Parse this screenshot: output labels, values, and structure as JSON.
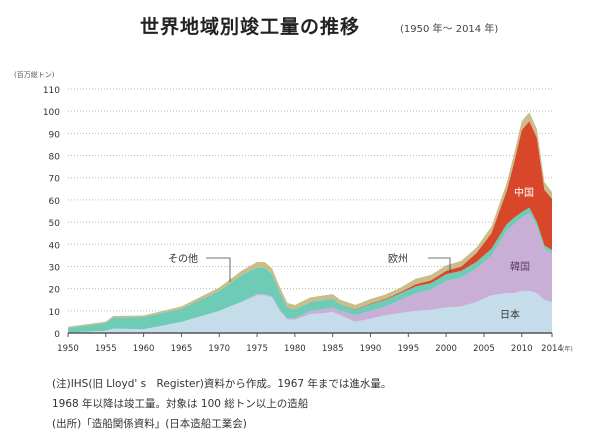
{
  "chart_data": {
    "type": "area",
    "stacked": true,
    "title": "世界地域別竣工量の推移",
    "subtitle": "(1950 年～ 2014 年)",
    "ylabel": "(百万総トン)",
    "xlabel": "(年)",
    "ylim": [
      0,
      110
    ],
    "xlim": [
      1950,
      2014
    ],
    "grid": true,
    "yticks": [
      0,
      10,
      20,
      30,
      40,
      50,
      60,
      70,
      80,
      90,
      100,
      110
    ],
    "xticks": [
      "1950",
      "1955",
      "1960",
      "1965",
      "1970",
      "1975",
      "1980",
      "1985",
      "1990",
      "1995",
      "2000",
      "2005",
      "2010",
      "2014"
    ],
    "x": [
      1950,
      1955,
      1956,
      1960,
      1965,
      1970,
      1973,
      1975,
      1976,
      1977,
      1978,
      1979,
      1980,
      1982,
      1984,
      1985,
      1986,
      1988,
      1990,
      1992,
      1994,
      1996,
      1998,
      2000,
      2002,
      2004,
      2006,
      2008,
      2009,
      2010,
      2011,
      2012,
      2013,
      2014
    ],
    "series": [
      {
        "name": "日本",
        "color": "#c5dcea",
        "values": [
          0.3,
          1,
          2,
          1.7,
          5,
          10,
          14,
          17,
          17,
          16,
          10,
          6,
          6,
          8.5,
          9,
          9.5,
          8,
          5,
          6.5,
          8,
          9,
          10,
          10.5,
          11.5,
          12,
          14,
          17,
          18,
          18,
          19,
          19,
          18,
          15,
          14
        ]
      },
      {
        "name": "韓国",
        "color": "#c9aed6",
        "values": [
          0,
          0,
          0,
          0,
          0,
          0,
          0.2,
          0.5,
          0.5,
          0.5,
          0.5,
          0.6,
          0.6,
          1.5,
          2,
          2,
          2,
          3,
          3.5,
          4,
          6,
          8,
          9,
          12,
          13,
          15,
          18,
          28,
          31,
          33,
          35,
          30,
          23,
          22
        ]
      },
      {
        "name": "欧州",
        "color": "#6ecbb5",
        "values": [
          2,
          3.5,
          5,
          5.5,
          6,
          9,
          12,
          12,
          12,
          10,
          8,
          5,
          4,
          4,
          4,
          4,
          3,
          2.5,
          3,
          3,
          3,
          3,
          3,
          3,
          3,
          3,
          3,
          3,
          3,
          2.5,
          2.5,
          2,
          1.5,
          1.5
        ]
      },
      {
        "name": "中国",
        "color": "#d9472b",
        "values": [
          0,
          0,
          0,
          0,
          0,
          0,
          0,
          0,
          0,
          0,
          0,
          0,
          0,
          0,
          0,
          0,
          0,
          0.2,
          0.3,
          0.4,
          0.5,
          1,
          1.2,
          1.5,
          2,
          4,
          7,
          15,
          25,
          37,
          39,
          38,
          25,
          23
        ]
      },
      {
        "name": "その他",
        "color": "#c9bd8a",
        "values": [
          0.5,
          0.6,
          0.7,
          0.7,
          1,
          1.5,
          2,
          2.5,
          2.5,
          2.5,
          2.2,
          2,
          2,
          2,
          2,
          2,
          2,
          2,
          2,
          2,
          2,
          2.5,
          2.5,
          2.5,
          2.5,
          2.5,
          3,
          3.5,
          4,
          4,
          4,
          4,
          3.5,
          3
        ]
      }
    ],
    "annotations": [
      "その他",
      "欧州",
      "中国",
      "韓国",
      "日本"
    ],
    "notes": [
      "(注)IHS(旧 Lloyd' s　Register)資料から作成。1967 年までは進水量。",
      "1968 年以降は竣工量。対象は 100 総トン以上の造船",
      "(出所)「造船関係資料」(日本造船工業会)"
    ]
  }
}
